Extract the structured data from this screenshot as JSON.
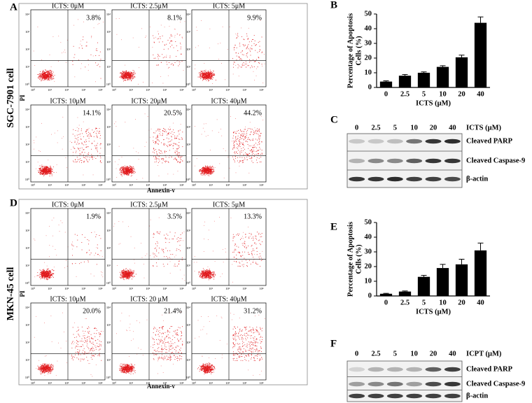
{
  "flow_panels": [
    {
      "panel": "A",
      "cell_line": "SGC-7901 cell",
      "y_axis_label": "PI",
      "x_axis_label": "Annexin-v",
      "axis_tick_labels": [
        "10⁰",
        "10¹",
        "10²",
        "10³",
        "10⁴"
      ],
      "plots": [
        {
          "title": "ICTS: 0μM",
          "percent": "3.8%"
        },
        {
          "title": "ICTS: 2.5μM",
          "percent": "8.1%"
        },
        {
          "title": "ICTS: 5μM",
          "percent": "9.9%"
        },
        {
          "title": "ICTS: 10μM",
          "percent": "14.1%"
        },
        {
          "title": "ICTS: 20μM",
          "percent": "20.5%"
        },
        {
          "title": "ICTS: 40μM",
          "percent": "44.2%"
        }
      ]
    },
    {
      "panel": "D",
      "cell_line": "MKN-45 cell",
      "y_axis_label": "PI",
      "x_axis_label": "Annexin-v",
      "axis_tick_labels": [
        "10⁰",
        "10¹",
        "10²",
        "10³",
        "10⁴"
      ],
      "plots": [
        {
          "title": "ICTS: 0μM",
          "percent": "1.9%"
        },
        {
          "title": "ICTS: 2.5μM",
          "percent": "3.5%"
        },
        {
          "title": "ICTS: 5μM",
          "percent": "13.3%"
        },
        {
          "title": "ICTS: 10μM",
          "percent": "20.0%"
        },
        {
          "title": "ICTS: 20 μM",
          "percent": "21.4%"
        },
        {
          "title": "ICTS: 40μM",
          "percent": "31.2%"
        }
      ]
    }
  ],
  "chart_data": [
    {
      "type": "bar",
      "panel": "B",
      "ylabel": [
        "Percentage of Apoptosis",
        "Cells (%)"
      ],
      "xlabel": "ICTS (μM)",
      "categories": [
        "0",
        "2.5",
        "5",
        "10",
        "20",
        "40"
      ],
      "values": [
        4,
        8,
        10,
        14,
        20.5,
        44
      ],
      "errors": [
        0.5,
        0.8,
        0.6,
        0.8,
        1.5,
        4
      ],
      "color": "#000000",
      "ylim": [
        0,
        50
      ],
      "yticks": [
        0,
        10,
        20,
        30,
        40,
        50
      ]
    },
    {
      "type": "bar",
      "panel": "E",
      "ylabel": [
        "Percentage of Apoptosis",
        "Cells (%)"
      ],
      "xlabel": "ICTS (μM)",
      "categories": [
        "0",
        "2.5",
        "5",
        "10",
        "20",
        "40"
      ],
      "values": [
        1.5,
        3,
        13,
        19,
        21.5,
        31
      ],
      "errors": [
        0.3,
        0.4,
        1,
        2.5,
        3.5,
        5
      ],
      "color": "#000000",
      "ylim": [
        0,
        50
      ],
      "yticks": [
        0,
        10,
        20,
        30,
        40,
        50
      ]
    }
  ],
  "blots": [
    {
      "panel": "C",
      "lanes": [
        "0",
        "2.5",
        "5",
        "10",
        "20",
        "40"
      ],
      "lane_title": "ICTS (μM)",
      "rows": [
        "Cleaved PARP",
        "Cleaved Caspase-9",
        "β-actin"
      ]
    },
    {
      "panel": "F",
      "lanes": [
        "0",
        "2.5",
        "5",
        "10",
        "20",
        "40"
      ],
      "lane_title": "ICPT (μM)",
      "rows": [
        "Cleaved PARP",
        "Cleaved Caspase-9",
        "β-actin"
      ]
    }
  ]
}
